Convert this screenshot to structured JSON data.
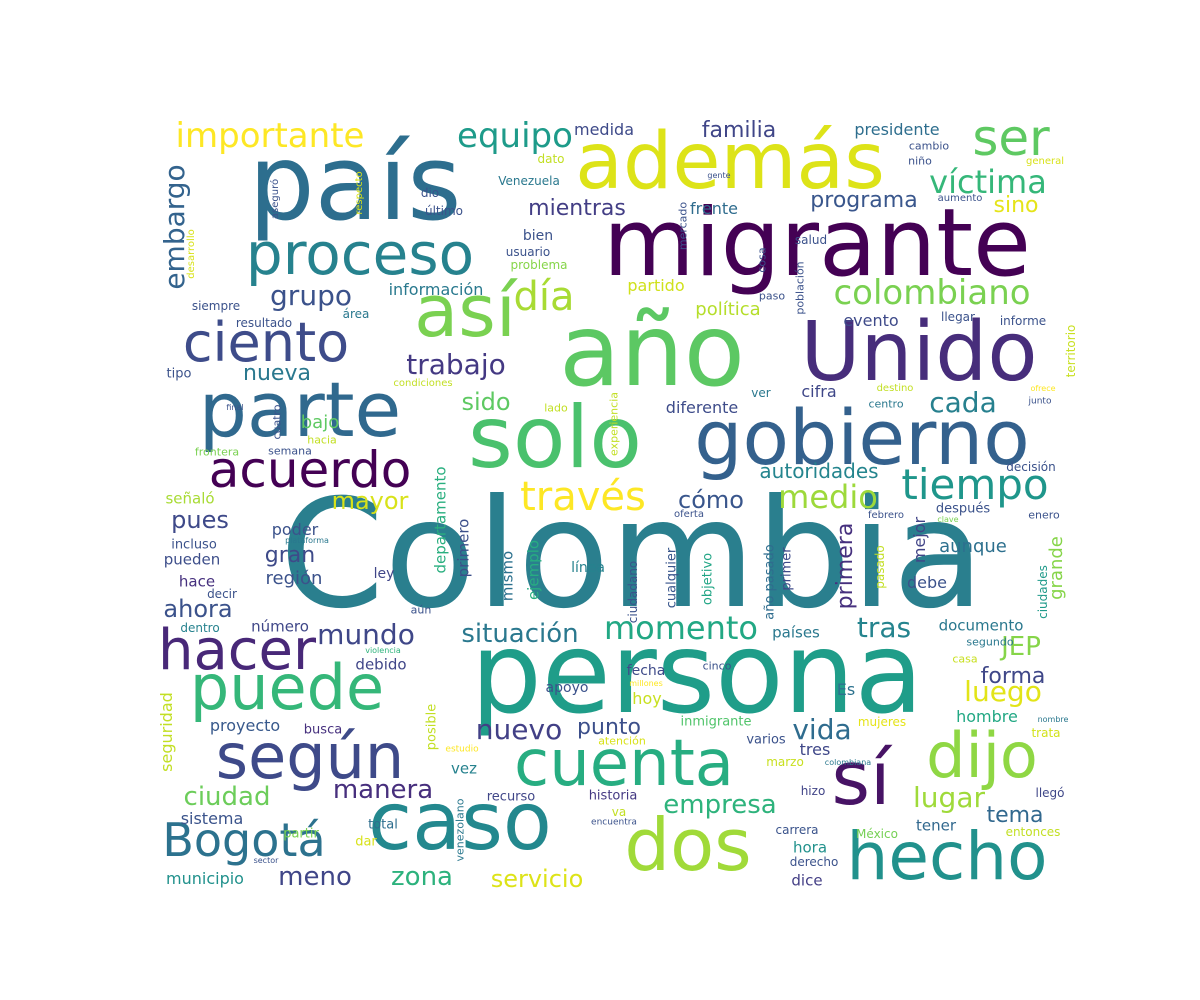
{
  "words": [
    {
      "text": "Colombia",
      "weight": 100,
      "color": "#2a7f8e"
    },
    {
      "text": "persona",
      "weight": 80,
      "color": "#1f9d89"
    },
    {
      "text": "país",
      "weight": 72,
      "color": "#2d6e8e"
    },
    {
      "text": "año",
      "weight": 70,
      "color": "#5cc863"
    },
    {
      "text": "migrante",
      "weight": 66,
      "color": "#440154"
    },
    {
      "text": "solo",
      "weight": 62,
      "color": "#4ac16d"
    },
    {
      "text": "Unido",
      "weight": 58,
      "color": "#472d7b"
    },
    {
      "text": "caso",
      "weight": 58,
      "color": "#23888e"
    },
    {
      "text": "además",
      "weight": 56,
      "color": "#dde318"
    },
    {
      "text": "gobierno",
      "weight": 56,
      "color": "#34618d"
    },
    {
      "text": "parte",
      "weight": 55,
      "color": "#30698e"
    },
    {
      "text": "sí",
      "weight": 54,
      "color": "#471365"
    },
    {
      "text": "así",
      "weight": 52,
      "color": "#7ad151"
    },
    {
      "text": "dos",
      "weight": 52,
      "color": "#a0da39"
    },
    {
      "text": "hecho",
      "weight": 50,
      "color": "#21918c"
    },
    {
      "text": "cuenta",
      "weight": 48,
      "color": "#27ad81"
    },
    {
      "text": "según",
      "weight": 46,
      "color": "#3e4a89"
    },
    {
      "text": "puede",
      "weight": 46,
      "color": "#35b779"
    },
    {
      "text": "dijo",
      "weight": 45,
      "color": "#8fd744"
    },
    {
      "text": "proceso",
      "weight": 44,
      "color": "#26828e"
    },
    {
      "text": "hacer",
      "weight": 42,
      "color": "#482878"
    },
    {
      "text": "ciento",
      "weight": 40,
      "color": "#3e4c8a"
    },
    {
      "text": "acuerdo",
      "weight": 38,
      "color": "#440154"
    },
    {
      "text": "ser",
      "weight": 36,
      "color": "#5ec962"
    },
    {
      "text": "Bogotá",
      "weight": 36,
      "color": "#2c728e"
    },
    {
      "text": "tiempo",
      "weight": 32,
      "color": "#1f968b"
    },
    {
      "text": "través",
      "weight": 30,
      "color": "#fde725"
    },
    {
      "text": "importante",
      "weight": 28,
      "color": "#fde725"
    },
    {
      "text": "equipo",
      "weight": 28,
      "color": "#1e9b8a"
    },
    {
      "text": "día",
      "weight": 30,
      "color": "#a8db34"
    },
    {
      "text": "colombiano",
      "weight": 28,
      "color": "#7ad151"
    },
    {
      "text": "víctima",
      "weight": 26,
      "color": "#35b779"
    },
    {
      "text": "medio",
      "weight": 26,
      "color": "#9dd93b"
    },
    {
      "text": "momento",
      "weight": 26,
      "color": "#22a884"
    },
    {
      "text": "cada",
      "weight": 24,
      "color": "#27808e"
    },
    {
      "text": "grupo",
      "weight": 24,
      "color": "#3b528b"
    },
    {
      "text": "trabajo",
      "weight": 24,
      "color": "#443983"
    },
    {
      "text": "embargo",
      "weight": 24,
      "color": "#33638d"
    },
    {
      "text": "mundo",
      "weight": 24,
      "color": "#3f4788"
    },
    {
      "text": "situación",
      "weight": 22,
      "color": "#2a788e"
    },
    {
      "text": "nuevo",
      "weight": 24,
      "color": "#424086"
    },
    {
      "text": "tras",
      "weight": 24,
      "color": "#25848e"
    },
    {
      "text": "vida",
      "weight": 24,
      "color": "#2f6c8e"
    },
    {
      "text": "luego",
      "weight": 24,
      "color": "#e2e418"
    },
    {
      "text": "lugar",
      "weight": 24,
      "color": "#9fda3a"
    },
    {
      "text": "manera",
      "weight": 22,
      "color": "#472f7d"
    },
    {
      "text": "ciudad",
      "weight": 22,
      "color": "#6ccd5a"
    },
    {
      "text": "empresa",
      "weight": 22,
      "color": "#2eb37c"
    },
    {
      "text": "zona",
      "weight": 22,
      "color": "#2db27d"
    },
    {
      "text": "meno",
      "weight": 22,
      "color": "#404688"
    },
    {
      "text": "servicio",
      "weight": 20,
      "color": "#dde318"
    },
    {
      "text": "JEP",
      "weight": 22,
      "color": "#86d549"
    },
    {
      "text": "forma",
      "weight": 20,
      "color": "#3f4788"
    },
    {
      "text": "tema",
      "weight": 20,
      "color": "#31688e"
    },
    {
      "text": "mayor",
      "weight": 20,
      "color": "#d8e219"
    },
    {
      "text": "pues",
      "weight": 20,
      "color": "#3e4989"
    },
    {
      "text": "ahora",
      "weight": 20,
      "color": "#3b528b"
    },
    {
      "text": "cómo",
      "weight": 20,
      "color": "#39568c"
    },
    {
      "text": "sido",
      "weight": 20,
      "color": "#5ec962"
    },
    {
      "text": "nueva",
      "weight": 18,
      "color": "#2a788e"
    },
    {
      "text": "mientras",
      "weight": 18,
      "color": "#433e85"
    },
    {
      "text": "familia",
      "weight": 18,
      "color": "#404688"
    },
    {
      "text": "programa",
      "weight": 18,
      "color": "#39568c"
    },
    {
      "text": "sino",
      "weight": 18,
      "color": "#e5e419"
    },
    {
      "text": "autoridades",
      "weight": 16,
      "color": "#25858e"
    },
    {
      "text": "primera",
      "weight": 18,
      "color": "#46307e"
    },
    {
      "text": "grande",
      "weight": 16,
      "color": "#86d549"
    },
    {
      "text": "aunque",
      "weight": 16,
      "color": "#2d708e"
    },
    {
      "text": "punto",
      "weight": 18,
      "color": "#3c4f8a"
    },
    {
      "text": "región",
      "weight": 16,
      "color": "#3b528b"
    },
    {
      "text": "gran",
      "weight": 18,
      "color": "#3e4a89"
    },
    {
      "text": "presidente",
      "weight": 14,
      "color": "#2e6e8e"
    },
    {
      "text": "medida",
      "weight": 14,
      "color": "#3e4a89"
    },
    {
      "text": "frente",
      "weight": 14,
      "color": "#2f6c8e"
    },
    {
      "text": "política",
      "weight": 16,
      "color": "#b5de2b"
    },
    {
      "text": "partido",
      "weight": 14,
      "color": "#d0e11c"
    },
    {
      "text": "información",
      "weight": 14,
      "color": "#29798e"
    },
    {
      "text": "bajo",
      "weight": 16,
      "color": "#5ec962"
    },
    {
      "text": "diferente",
      "weight": 14,
      "color": "#3e4c8a"
    },
    {
      "text": "hombre",
      "weight": 14,
      "color": "#22a884"
    },
    {
      "text": "debe",
      "weight": 14,
      "color": "#3b528b"
    },
    {
      "text": "mejor",
      "weight": 14,
      "color": "#414487"
    },
    {
      "text": "cifra",
      "weight": 14,
      "color": "#3f4788"
    },
    {
      "text": "evento",
      "weight": 14,
      "color": "#3e4a89"
    },
    {
      "text": "países",
      "weight": 14,
      "color": "#2a788e"
    },
    {
      "text": "documento",
      "weight": 13,
      "color": "#2a788e"
    },
    {
      "text": "hora",
      "weight": 13,
      "color": "#21918c"
    },
    {
      "text": "dice",
      "weight": 13,
      "color": "#433e85"
    },
    {
      "text": "tener",
      "weight": 13,
      "color": "#31688e"
    },
    {
      "text": "vez",
      "weight": 13,
      "color": "#26828e"
    },
    {
      "text": "proyecto",
      "weight": 14,
      "color": "#38598c"
    },
    {
      "text": "seguridad",
      "weight": 14,
      "color": "#c2df23"
    },
    {
      "text": "sistema",
      "weight": 13,
      "color": "#3a538b"
    },
    {
      "text": "municipio",
      "weight": 13,
      "color": "#21918c"
    },
    {
      "text": "poder",
      "weight": 14,
      "color": "#3b528b"
    },
    {
      "text": "hace",
      "weight": 13,
      "color": "#46307e"
    },
    {
      "text": "pueden",
      "weight": 13,
      "color": "#3d4e8a"
    },
    {
      "text": "incluso",
      "weight": 12,
      "color": "#3b528b"
    },
    {
      "text": "señaló",
      "weight": 13,
      "color": "#a8db34"
    },
    {
      "text": "número",
      "weight": 13,
      "color": "#3f4788"
    },
    {
      "text": "debido",
      "weight": 13,
      "color": "#404688"
    },
    {
      "text": "departamento",
      "weight": 13,
      "color": "#29af7f"
    },
    {
      "text": "primero",
      "weight": 13,
      "color": "#3c4f8a"
    },
    {
      "text": "mismo",
      "weight": 13,
      "color": "#2c718e"
    },
    {
      "text": "ejemplo",
      "weight": 13,
      "color": "#27ad81"
    },
    {
      "text": "cualquier",
      "weight": 12,
      "color": "#39568c"
    },
    {
      "text": "objetivo",
      "weight": 12,
      "color": "#21a585"
    },
    {
      "text": "año pasado",
      "weight": 12,
      "color": "#2f6c8e"
    },
    {
      "text": "primer",
      "weight": 12,
      "color": "#3e4a89"
    },
    {
      "text": "ciudadano",
      "weight": 11,
      "color": "#3b528b"
    },
    {
      "text": "línea",
      "weight": 12,
      "color": "#26828e"
    },
    {
      "text": "ley",
      "weight": 12,
      "color": "#404688"
    },
    {
      "text": "pasado",
      "weight": 11,
      "color": "#c2df23"
    },
    {
      "text": "ciudades",
      "weight": 11,
      "color": "#1f9a8a"
    },
    {
      "text": "fecha",
      "weight": 12,
      "color": "#3e4a89"
    },
    {
      "text": "apoyo",
      "weight": 12,
      "color": "#3b528b"
    },
    {
      "text": "hoy",
      "weight": 14,
      "color": "#c8e020"
    },
    {
      "text": "Es",
      "weight": 14,
      "color": "#2c728e"
    },
    {
      "text": "inmigrante",
      "weight": 12,
      "color": "#50c46a"
    },
    {
      "text": "tres",
      "weight": 13,
      "color": "#3f4788"
    },
    {
      "text": "varios",
      "weight": 11,
      "color": "#3b528b"
    },
    {
      "text": "marzo",
      "weight": 11,
      "color": "#c8e020"
    },
    {
      "text": "hizo",
      "weight": 11,
      "color": "#414487"
    },
    {
      "text": "carrera",
      "weight": 11,
      "color": "#3a538b"
    },
    {
      "text": "derecho",
      "weight": 11,
      "color": "#3b528b"
    },
    {
      "text": "México",
      "weight": 11,
      "color": "#75d054"
    },
    {
      "text": "mujeres",
      "weight": 11,
      "color": "#e5e419"
    },
    {
      "text": "llegó",
      "weight": 11,
      "color": "#3f4788"
    },
    {
      "text": "entonces",
      "weight": 11,
      "color": "#c2df23"
    },
    {
      "text": "trata",
      "weight": 11,
      "color": "#d2e21b"
    },
    {
      "text": "historia",
      "weight": 11,
      "color": "#443983"
    },
    {
      "text": "recurso",
      "weight": 11,
      "color": "#404688"
    },
    {
      "text": "venezolano",
      "weight": 10,
      "color": "#2a788e"
    },
    {
      "text": "total",
      "weight": 11,
      "color": "#2e6e8e"
    },
    {
      "text": "dar",
      "weight": 11,
      "color": "#d8e219"
    },
    {
      "text": "partir",
      "weight": 11,
      "color": "#7ad151"
    },
    {
      "text": "busca",
      "weight": 11,
      "color": "#46307e"
    },
    {
      "text": "posible",
      "weight": 11,
      "color": "#c2df23"
    },
    {
      "text": "estudio",
      "weight": 8,
      "color": "#fde725"
    },
    {
      "text": "atención",
      "weight": 9,
      "color": "#d8e219"
    },
    {
      "text": "colombiana",
      "weight": 7,
      "color": "#2a788e"
    },
    {
      "text": "va",
      "weight": 10,
      "color": "#c2df23"
    },
    {
      "text": "encuentra",
      "weight": 8,
      "color": "#3b528b"
    },
    {
      "text": "sector",
      "weight": 7,
      "color": "#3b528b"
    },
    {
      "text": "millones",
      "weight": 7,
      "color": "#fde725"
    },
    {
      "text": "cinco",
      "weight": 9,
      "color": "#3b528b"
    },
    {
      "text": "nombre",
      "weight": 7,
      "color": "#2a788e"
    },
    {
      "text": "casa",
      "weight": 9,
      "color": "#c8e020"
    },
    {
      "text": "segundo",
      "weight": 9,
      "color": "#2a788e"
    },
    {
      "text": "aún",
      "weight": 9,
      "color": "#3b528b"
    },
    {
      "text": "violencia",
      "weight": 7,
      "color": "#2eb37c"
    },
    {
      "text": "decir",
      "weight": 10,
      "color": "#3b528b"
    },
    {
      "text": "dentro",
      "weight": 10,
      "color": "#26828e"
    },
    {
      "text": "plataforma",
      "weight": 7,
      "color": "#2a788e"
    },
    {
      "text": "oferta",
      "weight": 9,
      "color": "#3b528b"
    },
    {
      "text": "febrero",
      "weight": 9,
      "color": "#3b528b"
    },
    {
      "text": "clave",
      "weight": 7,
      "color": "#7ad151"
    },
    {
      "text": "después",
      "weight": 12,
      "color": "#3b528b"
    },
    {
      "text": "enero",
      "weight": 10,
      "color": "#3b528b"
    },
    {
      "text": "decisión",
      "weight": 10,
      "color": "#3b528b"
    },
    {
      "text": "centro",
      "weight": 10,
      "color": "#2a788e"
    },
    {
      "text": "destino",
      "weight": 9,
      "color": "#c2df23"
    },
    {
      "text": "junto",
      "weight": 8,
      "color": "#3b528b"
    },
    {
      "text": "ofrece",
      "weight": 7,
      "color": "#fde725"
    },
    {
      "text": "territorio",
      "weight": 11,
      "color": "#c8e020"
    },
    {
      "text": "informe",
      "weight": 11,
      "color": "#3b528b"
    },
    {
      "text": "llegar",
      "weight": 11,
      "color": "#3b528b"
    },
    {
      "text": "población",
      "weight": 10,
      "color": "#3b528b"
    },
    {
      "text": "paso",
      "weight": 10,
      "color": "#3b528b"
    },
    {
      "text": "salud",
      "weight": 11,
      "color": "#3b528b"
    },
    {
      "text": "cosa",
      "weight": 10,
      "color": "#3b528b"
    },
    {
      "text": "mercado",
      "weight": 10,
      "color": "#3b528b"
    },
    {
      "text": "aumento",
      "weight": 9,
      "color": "#3b528b"
    },
    {
      "text": "niño",
      "weight": 10,
      "color": "#3b528b"
    },
    {
      "text": "cambio",
      "weight": 10,
      "color": "#3b528b"
    },
    {
      "text": "general",
      "weight": 9,
      "color": "#d8e219"
    },
    {
      "text": "gente",
      "weight": 7,
      "color": "#3b528b"
    },
    {
      "text": "dato",
      "weight": 10,
      "color": "#c2df23"
    },
    {
      "text": "Venezuela",
      "weight": 11,
      "color": "#2a788e"
    },
    {
      "text": "bien",
      "weight": 12,
      "color": "#3b528b"
    },
    {
      "text": "usuario",
      "weight": 11,
      "color": "#3b528b"
    },
    {
      "text": "problema",
      "weight": 11,
      "color": "#86d549"
    },
    {
      "text": "dio",
      "weight": 10,
      "color": "#3b528b"
    },
    {
      "text": "último",
      "weight": 10,
      "color": "#3b528b"
    },
    {
      "text": "respecto",
      "weight": 9,
      "color": "#d8e219"
    },
    {
      "text": "aseguró",
      "weight": 9,
      "color": "#3b528b"
    },
    {
      "text": "desarrollo",
      "weight": 9,
      "color": "#d8e219"
    },
    {
      "text": "siempre",
      "weight": 10,
      "color": "#3b528b"
    },
    {
      "text": "área",
      "weight": 10,
      "color": "#2a788e"
    },
    {
      "text": "resultado",
      "weight": 10,
      "color": "#3b528b"
    },
    {
      "text": "condiciones",
      "weight": 9,
      "color": "#c2df23"
    },
    {
      "text": "tipo",
      "weight": 11,
      "color": "#3b528b"
    },
    {
      "text": "lado",
      "weight": 10,
      "color": "#c2df23"
    },
    {
      "text": "ver",
      "weight": 10,
      "color": "#2a788e"
    },
    {
      "text": "final",
      "weight": 7,
      "color": "#3b528b"
    },
    {
      "text": "cuatro",
      "weight": 10,
      "color": "#3b528b"
    },
    {
      "text": "hacia",
      "weight": 10,
      "color": "#c2df23"
    },
    {
      "text": "frontera",
      "weight": 10,
      "color": "#7ad151"
    },
    {
      "text": "semana",
      "weight": 10,
      "color": "#3b528b"
    },
    {
      "text": "experiencia",
      "weight": 9,
      "color": "#c2df23"
    }
  ]
}
